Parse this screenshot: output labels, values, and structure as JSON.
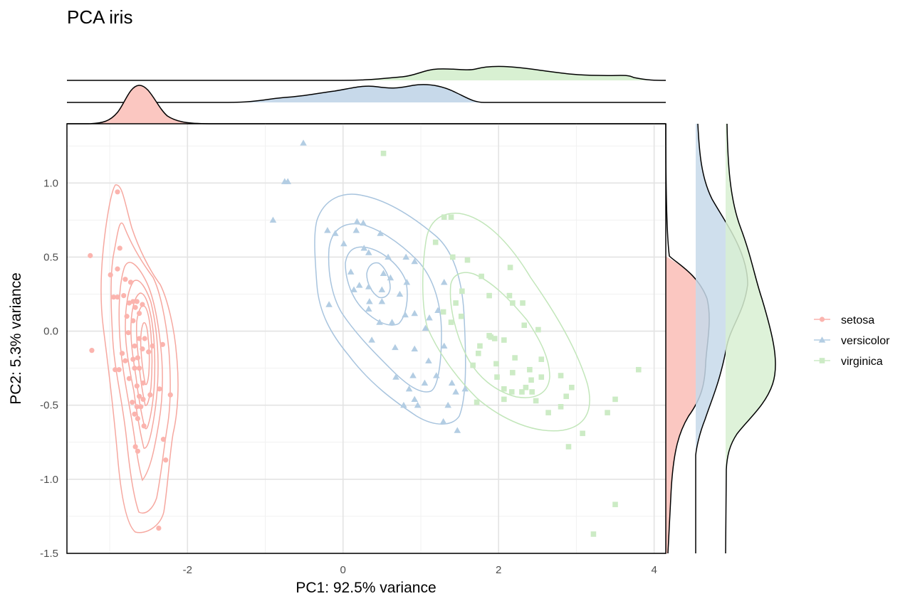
{
  "chart_data": {
    "type": "scatter",
    "title": "PCA iris",
    "xlabel": "PC1: 92.5% variance",
    "ylabel": "PC2: 5.3% variance",
    "xlim": [
      -3.55,
      4.15
    ],
    "ylim": [
      -1.5,
      1.4
    ],
    "x_ticks": [
      "-2",
      "0",
      "2",
      "4"
    ],
    "y_ticks": [
      "-1.5",
      "-1.0",
      "-0.5",
      "0.0",
      "0.5",
      "1.0"
    ],
    "grid": true,
    "legend_position": "right",
    "marginal_plots": "density (top: PC1, right: PC2)",
    "contours": "2D density per species",
    "series": [
      {
        "name": "setosa",
        "color": "#fbb4ae",
        "marker": "circle",
        "points": [
          [
            -3.25,
            0.51
          ],
          [
            -3.23,
            -0.13
          ],
          [
            -2.9,
            0.94
          ],
          [
            -2.87,
            0.56
          ],
          [
            -2.9,
            0.42
          ],
          [
            -2.8,
            0.35
          ],
          [
            -2.73,
            0.33
          ],
          [
            -2.99,
            0.38
          ],
          [
            -2.95,
            0.23
          ],
          [
            -2.9,
            0.23
          ],
          [
            -2.82,
            0.24
          ],
          [
            -2.75,
            0.19
          ],
          [
            -2.7,
            0.2
          ],
          [
            -2.67,
            0.16
          ],
          [
            -2.65,
            0.2
          ],
          [
            -2.62,
            0.12
          ],
          [
            -2.58,
            0.18
          ],
          [
            -2.78,
            0.1
          ],
          [
            -2.7,
            0.07
          ],
          [
            -2.76,
            -0.01
          ],
          [
            -2.62,
            -0.05
          ],
          [
            -2.55,
            -0.05
          ],
          [
            -2.45,
            -0.1
          ],
          [
            -2.68,
            -0.1
          ],
          [
            -2.58,
            -0.12
          ],
          [
            -2.32,
            -0.09
          ],
          [
            -2.84,
            -0.15
          ],
          [
            -2.8,
            -0.2
          ],
          [
            -2.7,
            -0.19
          ],
          [
            -2.64,
            -0.18
          ],
          [
            -2.5,
            -0.14
          ],
          [
            -2.93,
            -0.26
          ],
          [
            -2.88,
            -0.26
          ],
          [
            -2.68,
            -0.25
          ],
          [
            -2.62,
            -0.25
          ],
          [
            -2.75,
            -0.32
          ],
          [
            -2.65,
            -0.37
          ],
          [
            -2.57,
            -0.35
          ],
          [
            -2.62,
            -0.44
          ],
          [
            -2.57,
            -0.46
          ],
          [
            -2.48,
            -0.43
          ],
          [
            -2.36,
            -0.39
          ],
          [
            -2.22,
            -0.43
          ],
          [
            -2.71,
            -0.48
          ],
          [
            -2.65,
            -0.51
          ],
          [
            -2.6,
            -0.51
          ],
          [
            -2.68,
            -0.56
          ],
          [
            -2.64,
            -0.59
          ],
          [
            -2.56,
            -0.64
          ],
          [
            -2.67,
            -0.78
          ],
          [
            -2.64,
            -0.81
          ],
          [
            -2.31,
            -0.73
          ],
          [
            -2.28,
            -0.87
          ],
          [
            -2.37,
            -1.33
          ]
        ]
      },
      {
        "name": "versicolor",
        "color": "#b3cde3",
        "marker": "triangle",
        "points": [
          [
            -0.51,
            1.27
          ],
          [
            -0.75,
            1.01
          ],
          [
            -0.71,
            1.01
          ],
          [
            -0.9,
            0.75
          ],
          [
            0.18,
            0.74
          ],
          [
            0.26,
            0.73
          ],
          [
            0.17,
            0.68
          ],
          [
            -0.2,
            0.68
          ],
          [
            -0.1,
            0.66
          ],
          [
            0.48,
            0.66
          ],
          [
            0.01,
            0.59
          ],
          [
            0.27,
            0.56
          ],
          [
            0.33,
            0.53
          ],
          [
            0.58,
            0.5
          ],
          [
            0.81,
            0.5
          ],
          [
            0.92,
            0.47
          ],
          [
            0.1,
            0.4
          ],
          [
            0.52,
            0.39
          ],
          [
            0.61,
            0.36
          ],
          [
            0.82,
            0.33
          ],
          [
            0.21,
            0.31
          ],
          [
            0.33,
            0.3
          ],
          [
            0.5,
            0.28
          ],
          [
            0.14,
            0.28
          ],
          [
            0.73,
            0.25
          ],
          [
            1.3,
            0.33
          ],
          [
            0.34,
            0.2
          ],
          [
            0.5,
            0.2
          ],
          [
            -0.18,
            0.18
          ],
          [
            0.33,
            0.15
          ],
          [
            0.8,
            0.11
          ],
          [
            0.92,
            0.12
          ],
          [
            1.11,
            0.09
          ],
          [
            1.22,
            0.14
          ],
          [
            0.47,
            0.06
          ],
          [
            0.63,
            0.06
          ],
          [
            1.06,
            0.02
          ],
          [
            0.37,
            -0.06
          ],
          [
            0.67,
            -0.11
          ],
          [
            0.92,
            -0.12
          ],
          [
            1.3,
            -0.1
          ],
          [
            1.1,
            -0.2
          ],
          [
            0.68,
            -0.31
          ],
          [
            0.9,
            -0.3
          ],
          [
            1.05,
            -0.35
          ],
          [
            1.2,
            -0.3
          ],
          [
            1.4,
            -0.35
          ],
          [
            0.85,
            -0.39
          ],
          [
            1.57,
            -0.39
          ],
          [
            1.45,
            -0.41
          ],
          [
            0.96,
            -0.5
          ],
          [
            1.35,
            -0.5
          ],
          [
            0.92,
            -0.46
          ],
          [
            0.78,
            -0.5
          ],
          [
            1.47,
            -0.67
          ],
          [
            1.29,
            -0.61
          ]
        ]
      },
      {
        "name": "virginica",
        "color": "#ccebc5",
        "marker": "square",
        "points": [
          [
            0.52,
            1.2
          ],
          [
            1.3,
            0.77
          ],
          [
            1.39,
            0.77
          ],
          [
            1.19,
            0.6
          ],
          [
            1.41,
            0.5
          ],
          [
            1.6,
            0.48
          ],
          [
            1.78,
            0.37
          ],
          [
            2.15,
            0.43
          ],
          [
            1.53,
            0.27
          ],
          [
            1.45,
            0.19
          ],
          [
            1.88,
            0.24
          ],
          [
            2.14,
            0.24
          ],
          [
            2.31,
            0.19
          ],
          [
            2.18,
            0.19
          ],
          [
            1.29,
            0.13
          ],
          [
            1.52,
            0.1
          ],
          [
            1.39,
            0.06
          ],
          [
            2.33,
            0.04
          ],
          [
            2.51,
            0.01
          ],
          [
            2.07,
            -0.06
          ],
          [
            1.95,
            -0.05
          ],
          [
            1.88,
            -0.03
          ],
          [
            1.76,
            -0.1
          ],
          [
            1.74,
            -0.15
          ],
          [
            1.67,
            -0.23
          ],
          [
            1.97,
            -0.22
          ],
          [
            2.21,
            -0.18
          ],
          [
            2.55,
            -0.19
          ],
          [
            2.18,
            -0.28
          ],
          [
            1.98,
            -0.31
          ],
          [
            2.4,
            -0.26
          ],
          [
            2.55,
            -0.31
          ],
          [
            2.8,
            -0.3
          ],
          [
            2.42,
            -0.33
          ],
          [
            2.17,
            -0.41
          ],
          [
            2.3,
            -0.41
          ],
          [
            2.07,
            -0.39
          ],
          [
            2.35,
            -0.38
          ],
          [
            1.72,
            -0.48
          ],
          [
            2.07,
            -0.46
          ],
          [
            2.87,
            -0.44
          ],
          [
            2.8,
            -0.51
          ],
          [
            2.48,
            -0.47
          ],
          [
            2.94,
            -0.38
          ],
          [
            2.64,
            -0.55
          ],
          [
            3.08,
            -0.69
          ],
          [
            2.9,
            -0.78
          ],
          [
            3.4,
            -0.55
          ],
          [
            3.5,
            -0.46
          ],
          [
            3.8,
            -0.26
          ],
          [
            3.5,
            -1.17
          ],
          [
            3.22,
            -1.37
          ],
          [
            2.43,
            -0.41
          ],
          [
            1.9,
            -0.04
          ]
        ]
      }
    ]
  }
}
